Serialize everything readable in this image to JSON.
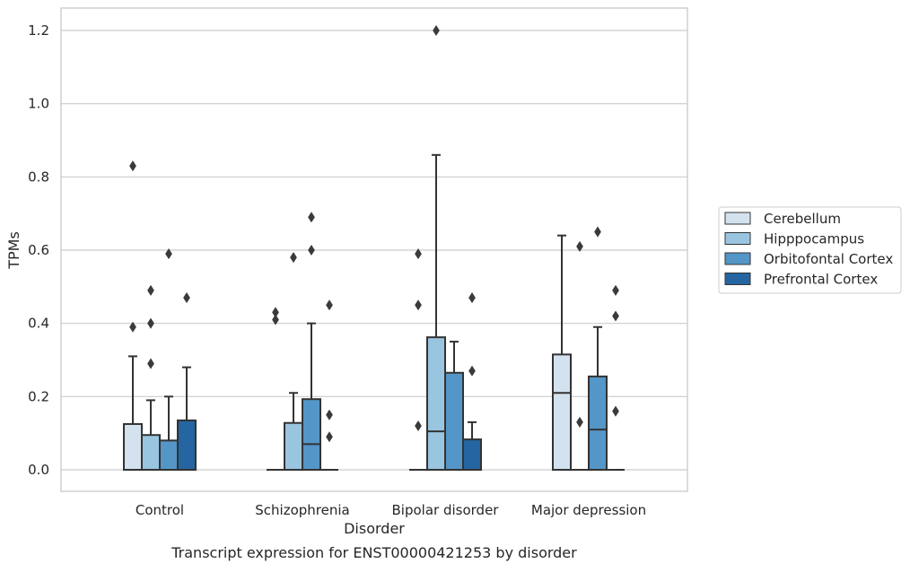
{
  "chart_data": {
    "type": "box",
    "xlabel": "Disorder",
    "ylabel": "TPMs",
    "caption": "Transcript expression for ENST00000421253 by disorder",
    "ylim": [
      -0.06,
      1.26
    ],
    "yticks": [
      0.0,
      0.2,
      0.4,
      0.6,
      0.8,
      1.0,
      1.2
    ],
    "ytick_labels": [
      "0.0",
      "0.2",
      "0.4",
      "0.6",
      "0.8",
      "1.0",
      "1.2"
    ],
    "grid": "horizontal",
    "legend_position": "right",
    "categories": [
      "Control",
      "Schizophrenia",
      "Bipolar disorder",
      "Major depression"
    ],
    "series": [
      {
        "name": "Cerebellum",
        "color": "#d4e2ef",
        "boxes": [
          {
            "whisker_low": 0,
            "q1": 0,
            "median": 0,
            "q3": 0.125,
            "whisker_high": 0.31,
            "outliers": [
              0.39,
              0.83
            ]
          },
          {
            "whisker_low": 0,
            "q1": 0,
            "median": 0,
            "q3": 0,
            "whisker_high": 0,
            "outliers": [
              0.41,
              0.43
            ]
          },
          {
            "whisker_low": 0,
            "q1": 0,
            "median": 0,
            "q3": 0,
            "whisker_high": 0,
            "outliers": [
              0.12,
              0.45,
              0.59
            ]
          },
          {
            "whisker_low": 0,
            "q1": 0,
            "median": 0.21,
            "q3": 0.315,
            "whisker_high": 0.64,
            "outliers": []
          }
        ]
      },
      {
        "name": "Hipppocampus",
        "color": "#9ac5e0",
        "boxes": [
          {
            "whisker_low": 0,
            "q1": 0,
            "median": 0,
            "q3": 0.095,
            "whisker_high": 0.19,
            "outliers": [
              0.29,
              0.4,
              0.49
            ]
          },
          {
            "whisker_low": 0,
            "q1": 0,
            "median": 0,
            "q3": 0.128,
            "whisker_high": 0.21,
            "outliers": [
              0.58
            ]
          },
          {
            "whisker_low": 0,
            "q1": 0,
            "median": 0.105,
            "q3": 0.362,
            "whisker_high": 0.86,
            "outliers": [
              1.2
            ]
          },
          {
            "whisker_low": 0,
            "q1": 0,
            "median": 0,
            "q3": 0,
            "whisker_high": 0,
            "outliers": [
              0.13,
              0.61
            ]
          }
        ]
      },
      {
        "name": "Orbitofontal Cortex",
        "color": "#5496c7",
        "boxes": [
          {
            "whisker_low": 0,
            "q1": 0,
            "median": 0,
            "q3": 0.08,
            "whisker_high": 0.2,
            "outliers": [
              0.59
            ]
          },
          {
            "whisker_low": 0,
            "q1": 0,
            "median": 0.07,
            "q3": 0.193,
            "whisker_high": 0.4,
            "outliers": [
              0.6,
              0.69
            ]
          },
          {
            "whisker_low": 0,
            "q1": 0,
            "median": 0,
            "q3": 0.265,
            "whisker_high": 0.35,
            "outliers": []
          },
          {
            "whisker_low": 0,
            "q1": 0,
            "median": 0.11,
            "q3": 0.255,
            "whisker_high": 0.39,
            "outliers": [
              0.65
            ]
          }
        ]
      },
      {
        "name": "Prefrontal Cortex",
        "color": "#2565a2",
        "boxes": [
          {
            "whisker_low": 0,
            "q1": 0,
            "median": 0,
            "q3": 0.135,
            "whisker_high": 0.28,
            "outliers": [
              0.47
            ]
          },
          {
            "whisker_low": 0,
            "q1": 0,
            "median": 0,
            "q3": 0,
            "whisker_high": 0,
            "outliers": [
              0.09,
              0.15,
              0.45
            ]
          },
          {
            "whisker_low": 0,
            "q1": 0,
            "median": 0,
            "q3": 0.083,
            "whisker_high": 0.13,
            "outliers": [
              0.27,
              0.47
            ]
          },
          {
            "whisker_low": 0,
            "q1": 0,
            "median": 0,
            "q3": 0,
            "whisker_high": 0,
            "outliers": [
              0.16,
              0.42,
              0.49
            ]
          }
        ]
      }
    ]
  }
}
